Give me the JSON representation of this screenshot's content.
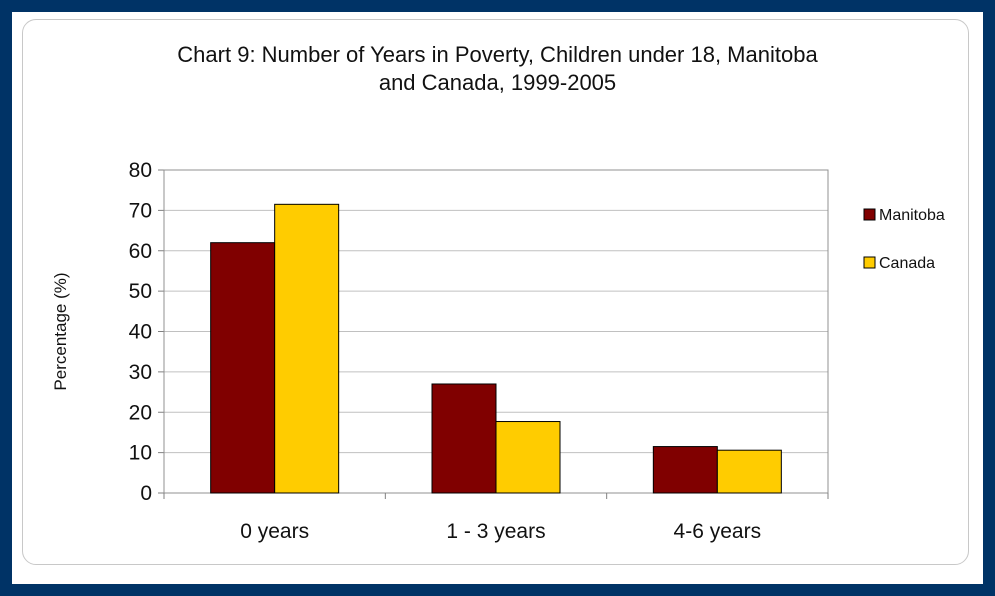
{
  "chart_data": {
    "type": "bar",
    "title": [
      "Chart 9: Number of Years in Poverty, Children under 18, Manitoba",
      "and Canada, 1999-2005"
    ],
    "xlabel": "",
    "ylabel": "Percentage (%)",
    "ylim": [
      0,
      80
    ],
    "yticks": [
      0,
      10,
      20,
      30,
      40,
      50,
      60,
      70,
      80
    ],
    "categories": [
      "0 years",
      "1 - 3 years",
      "4-6 years"
    ],
    "series": [
      {
        "name": "Manitoba",
        "color": "#800000",
        "values": [
          62,
          27,
          11.5
        ]
      },
      {
        "name": "Canada",
        "color": "#FFCC00",
        "values": [
          71.5,
          17.7,
          10.6
        ]
      }
    ],
    "grid": true,
    "legend": "right"
  },
  "colors": {
    "frame": "#003366",
    "gridline": "#c0c0c0"
  }
}
